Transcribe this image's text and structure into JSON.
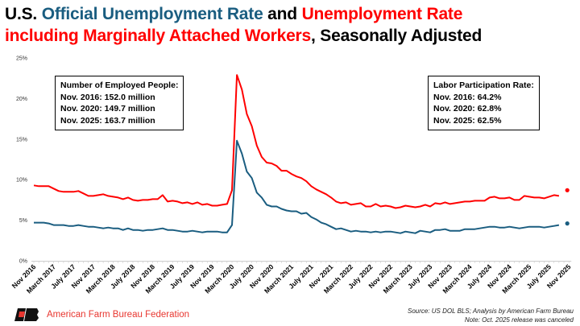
{
  "title": {
    "part1": "U.S. ",
    "part2": "Official Unemployment Rate",
    "part3": " and ",
    "part4": "Unemployment Rate",
    "part5": "including Marginally Attached Workers",
    "part6": ", Seasonally Adjusted"
  },
  "employed_box": {
    "heading": "Number of Employed People:",
    "lines": [
      "Nov. 2016: 152.0 million",
      "Nov. 2020: 149.7 million",
      "Nov. 2025: 163.7 million"
    ]
  },
  "participation_box": {
    "heading": "Labor Participation Rate:",
    "lines": [
      "Nov. 2016: 64.2%",
      "Nov. 2020: 62.8%",
      "Nov. 2025: 62.5%"
    ]
  },
  "source": "Source: US DOL BLS; Analysis by American Farm Bureau",
  "note": "Note: Oct. 2025 release was canceled",
  "logo": {
    "text": "American Farm Bureau Federation",
    "mark": "FB"
  },
  "colors": {
    "u3": "#1a5d80",
    "u6": "#ff0000"
  },
  "chart_data": {
    "type": "line",
    "title": "U.S. Official Unemployment Rate and Unemployment Rate including Marginally Attached Workers, Seasonally Adjusted",
    "start_month": "Nov 2016",
    "ylim": [
      0,
      25
    ],
    "yticks": [
      "0%",
      "5%",
      "10%",
      "15%",
      "20%",
      "25%"
    ],
    "xtick_labels": [
      "Nov 2016",
      "March 2017",
      "July 2017",
      "Nov 2017",
      "March 2018",
      "July 2018",
      "Nov 2018",
      "March 2019",
      "July 2019",
      "Nov 2019",
      "March 2020",
      "July 2020",
      "Nov 2020",
      "March 2021",
      "July 2021",
      "Nov 2021",
      "March 2022",
      "July 2022",
      "Nov 2022",
      "March 2023",
      "July 2023",
      "Nov 2023",
      "March 2024",
      "July 2024",
      "Nov 2024",
      "March 2025",
      "July 2025",
      "Nov 2025"
    ],
    "series": [
      {
        "name": "Official Unemployment Rate",
        "color": "#1a5d80",
        "values": [
          4.7,
          4.7,
          4.7,
          4.6,
          4.4,
          4.4,
          4.4,
          4.3,
          4.3,
          4.4,
          4.3,
          4.2,
          4.2,
          4.1,
          4.0,
          4.1,
          4.0,
          4.0,
          3.8,
          4.0,
          3.8,
          3.8,
          3.7,
          3.8,
          3.8,
          3.9,
          4.0,
          3.8,
          3.8,
          3.7,
          3.6,
          3.6,
          3.7,
          3.6,
          3.5,
          3.6,
          3.6,
          3.6,
          3.5,
          3.5,
          4.4,
          14.8,
          13.2,
          11.0,
          10.2,
          8.4,
          7.8,
          6.9,
          6.7,
          6.7,
          6.4,
          6.2,
          6.1,
          6.1,
          5.8,
          5.9,
          5.4,
          5.1,
          4.7,
          4.5,
          4.2,
          3.9,
          4.0,
          3.8,
          3.6,
          3.7,
          3.6,
          3.6,
          3.5,
          3.6,
          3.5,
          3.6,
          3.6,
          3.5,
          3.4,
          3.6,
          3.5,
          3.4,
          3.7,
          3.6,
          3.5,
          3.8,
          3.8,
          3.9,
          3.7,
          3.7,
          3.7,
          3.9,
          3.9,
          3.9,
          4.0,
          4.1,
          4.2,
          4.2,
          4.1,
          4.1,
          4.2,
          4.1,
          4.0,
          4.1,
          4.2,
          4.2,
          4.2,
          4.1,
          4.2,
          4.3,
          4.4,
          null,
          4.6
        ]
      },
      {
        "name": "Unemployment Rate including Marginally Attached Workers",
        "color": "#ff0000",
        "values": [
          9.3,
          9.2,
          9.2,
          9.2,
          8.9,
          8.6,
          8.5,
          8.5,
          8.5,
          8.6,
          8.3,
          8.0,
          8.0,
          8.1,
          8.2,
          8.0,
          7.9,
          7.8,
          7.6,
          7.8,
          7.5,
          7.4,
          7.5,
          7.5,
          7.6,
          7.6,
          8.1,
          7.3,
          7.4,
          7.3,
          7.1,
          7.2,
          7.0,
          7.2,
          6.9,
          7.0,
          6.8,
          6.8,
          6.9,
          7.0,
          8.7,
          22.9,
          21.1,
          18.1,
          16.6,
          14.2,
          12.8,
          12.1,
          12.0,
          11.7,
          11.1,
          11.1,
          10.7,
          10.4,
          10.2,
          9.8,
          9.2,
          8.8,
          8.5,
          8.2,
          7.8,
          7.3,
          7.1,
          7.2,
          6.9,
          7.0,
          7.1,
          6.7,
          6.7,
          7.0,
          6.7,
          6.8,
          6.7,
          6.5,
          6.6,
          6.8,
          6.7,
          6.6,
          6.7,
          6.9,
          6.7,
          7.1,
          7.0,
          7.2,
          7.0,
          7.1,
          7.2,
          7.3,
          7.3,
          7.4,
          7.4,
          7.4,
          7.8,
          7.9,
          7.7,
          7.7,
          7.8,
          7.5,
          7.5,
          8.0,
          7.9,
          7.8,
          7.8,
          7.7,
          7.9,
          8.1,
          8.0,
          null,
          8.7
        ]
      }
    ],
    "grid": false,
    "legend": "none (title colored)"
  }
}
